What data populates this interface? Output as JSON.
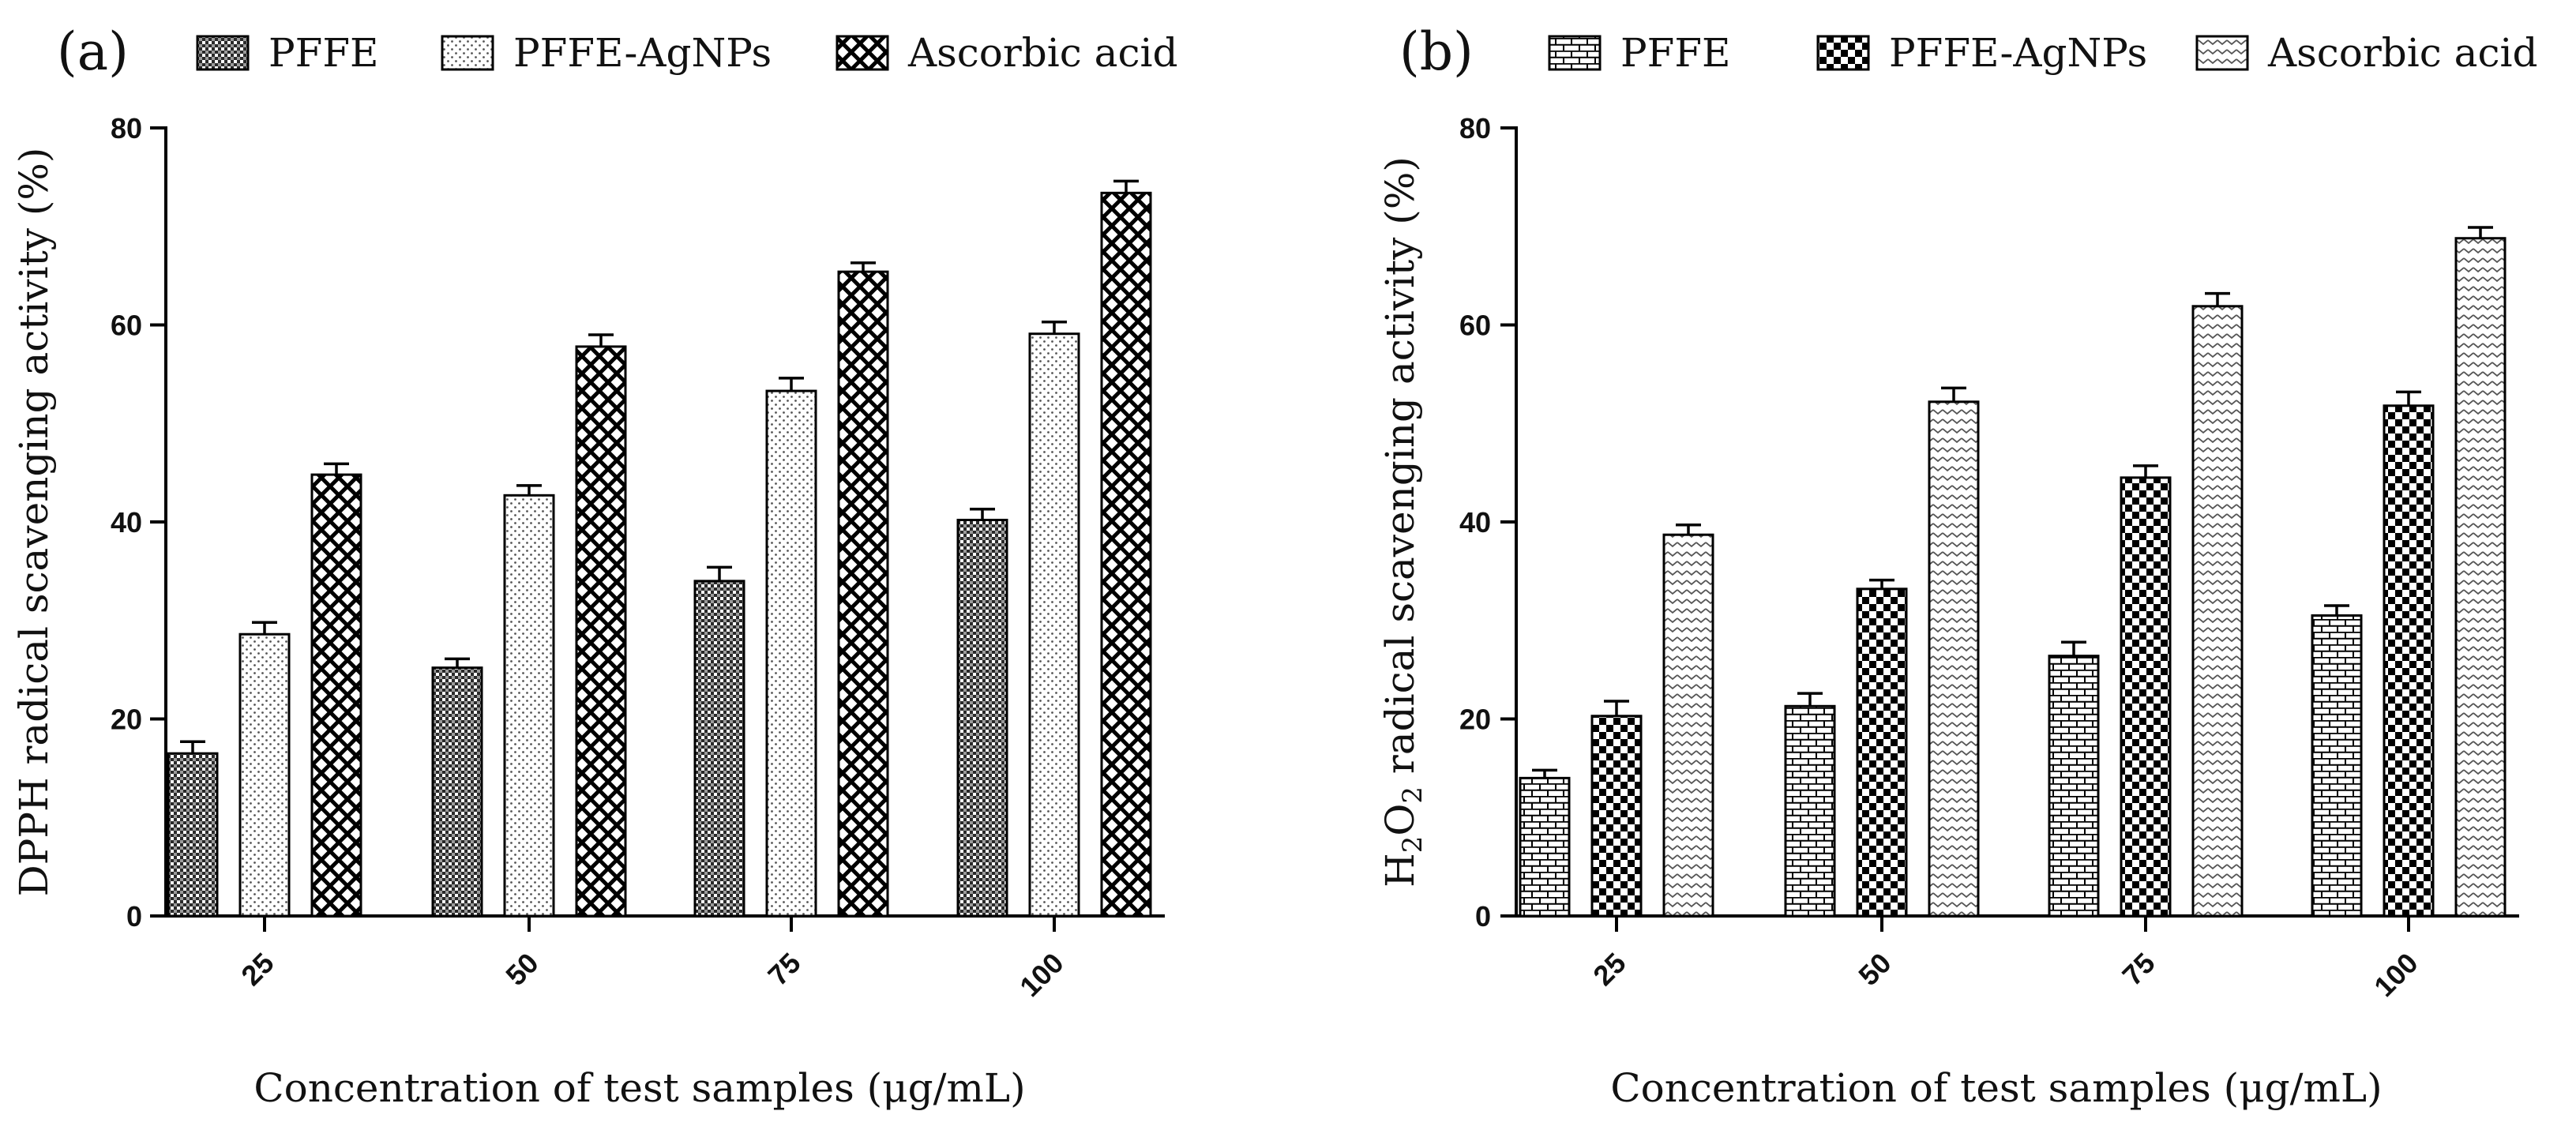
{
  "figure": {
    "panels": [
      "(a)",
      "(b)"
    ]
  },
  "chart_data": [
    {
      "type": "bar",
      "panel_label": "(a)",
      "title": "",
      "xlabel": "Concentration of test samples (μg/mL)",
      "ylabel": "DPPH radical scavenging activity (%)",
      "ylim": [
        0,
        80
      ],
      "yticks": [
        0,
        20,
        40,
        60,
        80
      ],
      "grid": false,
      "legend_position": "top",
      "categories": [
        "25",
        "50",
        "75",
        "100"
      ],
      "series": [
        {
          "name": "PFFE",
          "pattern": "dense-dots",
          "values": [
            16.5,
            25.2,
            34.0,
            40.2
          ],
          "errors": [
            1.2,
            0.9,
            1.4,
            1.1
          ]
        },
        {
          "name": "PFFE-AgNPs",
          "pattern": "sparse-dots",
          "values": [
            28.6,
            42.7,
            53.3,
            59.1
          ],
          "errors": [
            1.2,
            1.0,
            1.3,
            1.2
          ]
        },
        {
          "name": "Ascorbic acid",
          "pattern": "crosshatch",
          "values": [
            44.8,
            57.8,
            65.4,
            73.4
          ],
          "errors": [
            1.1,
            1.2,
            0.9,
            1.2
          ]
        }
      ]
    },
    {
      "type": "bar",
      "panel_label": "(b)",
      "title": "",
      "xlabel": "Concentration of test samples (μg/mL)",
      "ylabel_prefix": "H",
      "ylabel_sub1": "2",
      "ylabel_mid": "O",
      "ylabel_sub2": "2",
      "ylabel_suffix": " radical scavenging activity (%)",
      "ylim": [
        0,
        80
      ],
      "yticks": [
        0,
        20,
        40,
        60,
        80
      ],
      "grid": false,
      "legend_position": "top",
      "categories": [
        "25",
        "50",
        "75",
        "100"
      ],
      "series": [
        {
          "name": "PFFE",
          "pattern": "brick",
          "values": [
            14.0,
            21.3,
            26.4,
            30.5
          ],
          "errors": [
            0.8,
            1.3,
            1.4,
            1.0
          ]
        },
        {
          "name": "PFFE-AgNPs",
          "pattern": "checker",
          "values": [
            20.3,
            33.2,
            44.5,
            51.8
          ],
          "errors": [
            1.5,
            0.9,
            1.2,
            1.4
          ]
        },
        {
          "name": "Ascorbic acid",
          "pattern": "chevron",
          "values": [
            38.7,
            52.2,
            61.9,
            68.8
          ],
          "errors": [
            1.0,
            1.4,
            1.3,
            1.1
          ]
        }
      ]
    }
  ]
}
